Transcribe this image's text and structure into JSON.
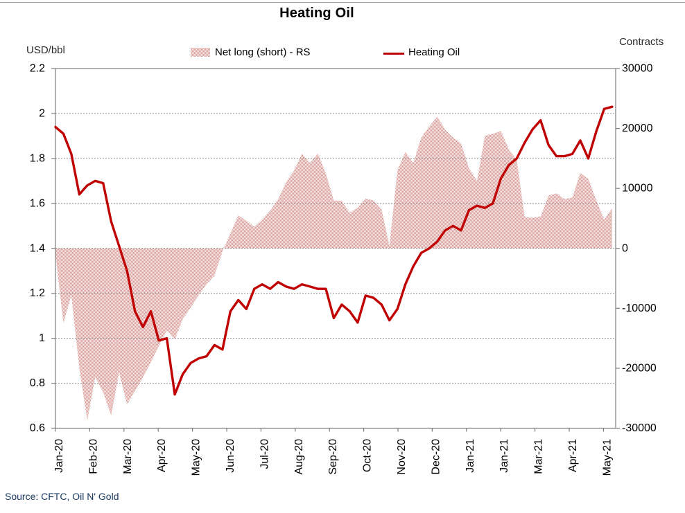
{
  "title": "Heating Oil",
  "legend": {
    "area_label": "Net long (short) - RS",
    "line_label": "Heating Oil"
  },
  "left_axis": {
    "unit_label": "USD/bbl",
    "ticks": [
      "2.2",
      "2",
      "1.8",
      "1.6",
      "1.4",
      "1.2",
      "1",
      "0.8",
      "0.6"
    ]
  },
  "right_axis": {
    "unit_label": "Contracts",
    "ticks": [
      "30000",
      "20000",
      "10000",
      "0",
      "-10000",
      "-20000",
      "-30000"
    ]
  },
  "x_axis": {
    "tick_labels": [
      "Jan-20",
      "Feb-20",
      "Mar-20",
      "Apr-20",
      "May-20",
      "Jun-20",
      "Jul-20",
      "Aug-20",
      "Sep-20",
      "Oct-20",
      "Nov-20",
      "Dec-20",
      "Jan-21",
      "Jan-21",
      "Mar-21",
      "Apr-21",
      "May-21"
    ]
  },
  "source_note": "Source: CFTC, Oil N' Gold",
  "colors": {
    "line": "#c00000",
    "area_pink": "#db999d",
    "area_cream": "#faf1e8",
    "grid": "#8f8f8f",
    "axis": "#7f7f7f",
    "text": "#000000",
    "source_text": "#17365d"
  },
  "chart_data": {
    "type": "combo",
    "title": "Heating Oil",
    "frequency": "weekly",
    "x_note": "Weekly observations, Jan-2020 through mid-May-2021 (71 points); month tick labels as printed on the axis (note 'Jan-21' appears twice in the original)",
    "x_tick_labels": [
      "Jan-20",
      "Feb-20",
      "Mar-20",
      "Apr-20",
      "May-20",
      "Jun-20",
      "Jul-20",
      "Aug-20",
      "Sep-20",
      "Oct-20",
      "Nov-20",
      "Dec-20",
      "Jan-21",
      "Jan-21",
      "Mar-21",
      "Apr-21",
      "May-21"
    ],
    "left_ylabel": "USD/bbl",
    "right_ylabel": "Contracts",
    "left_ylim": [
      0.6,
      2.2
    ],
    "right_ylim": [
      -30000,
      30000
    ],
    "grid": "horizontal-dotted",
    "legend_position": "top",
    "series": [
      {
        "name": "Net long (short) - RS",
        "type": "area",
        "axis": "right",
        "baseline": 0,
        "values": [
          -1000,
          -12500,
          -7800,
          -20000,
          -28700,
          -21500,
          -24000,
          -27900,
          -20700,
          -26000,
          -23800,
          -21500,
          -19000,
          -16300,
          -13700,
          -15200,
          -11800,
          -9900,
          -7800,
          -6000,
          -4500,
          -500,
          2500,
          5500,
          4600,
          3600,
          4800,
          6300,
          8200,
          11000,
          13000,
          15800,
          14200,
          15800,
          12500,
          8000,
          7900,
          5900,
          6800,
          8300,
          8000,
          6500,
          400,
          13000,
          16100,
          14200,
          18500,
          20300,
          22000,
          19800,
          18500,
          17500,
          13400,
          11200,
          18800,
          19100,
          19600,
          16500,
          14800,
          5200,
          5100,
          5300,
          8800,
          9200,
          8200,
          8500,
          12600,
          11600,
          8000,
          4800,
          6700
        ]
      },
      {
        "name": "Heating Oil",
        "type": "line",
        "axis": "left",
        "values": [
          1.94,
          1.91,
          1.82,
          1.64,
          1.68,
          1.7,
          1.69,
          1.52,
          1.41,
          1.3,
          1.12,
          1.05,
          1.12,
          0.99,
          1.0,
          0.75,
          0.84,
          0.89,
          0.91,
          0.92,
          0.97,
          0.95,
          1.12,
          1.17,
          1.13,
          1.22,
          1.24,
          1.22,
          1.25,
          1.23,
          1.22,
          1.24,
          1.23,
          1.22,
          1.22,
          1.09,
          1.15,
          1.12,
          1.07,
          1.19,
          1.18,
          1.15,
          1.08,
          1.13,
          1.24,
          1.32,
          1.38,
          1.4,
          1.43,
          1.48,
          1.5,
          1.48,
          1.57,
          1.59,
          1.58,
          1.6,
          1.71,
          1.77,
          1.8,
          1.87,
          1.93,
          1.97,
          1.86,
          1.81,
          1.81,
          1.82,
          1.88,
          1.8,
          1.92,
          2.02,
          2.03
        ]
      }
    ]
  }
}
